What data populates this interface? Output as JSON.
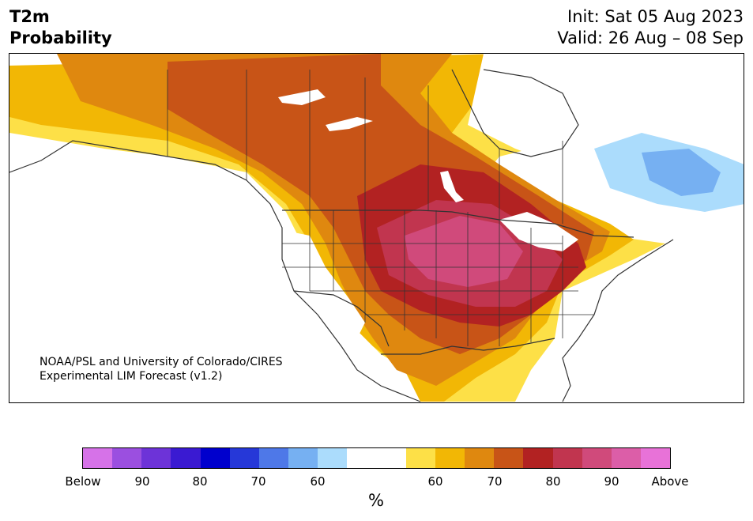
{
  "header": {
    "left_line1": "T2m",
    "left_line2": "Probability",
    "right_line1": "Init: Sat 05 Aug 2023",
    "right_line2": "Valid: 26 Aug – 08 Sep"
  },
  "map": {
    "credit_line1": "NOAA/PSL and University of Colorado/CIRES",
    "credit_line2": "Experimental LIM Forecast (v1.2)"
  },
  "colorbar": {
    "colors": [
      "#d672e8",
      "#9b4fe0",
      "#6d33d8",
      "#3a1ad2",
      "#0000cd",
      "#2638d8",
      "#4e78e8",
      "#76b0f2",
      "#abdcfc",
      "#ffffff",
      "#ffffff",
      "#fde047",
      "#f2b705",
      "#df880f",
      "#c85417",
      "#b22222",
      "#c1354f",
      "#d04a7b",
      "#dc5ea8",
      "#e872d8"
    ],
    "tick_labels": [
      "Below",
      "90",
      "80",
      "70",
      "60",
      "60",
      "70",
      "80",
      "90",
      "Above"
    ],
    "unit_label": "%"
  },
  "legend_colors": {
    "below_far": "#abdcfc",
    "below_mid": "#76b0f2",
    "above_60": "#fde047",
    "above_65": "#f2b705",
    "above_70": "#df880f",
    "above_75": "#c85417",
    "above_80": "#b22222",
    "above_85": "#c1354f",
    "above_90": "#d04a7b"
  }
}
